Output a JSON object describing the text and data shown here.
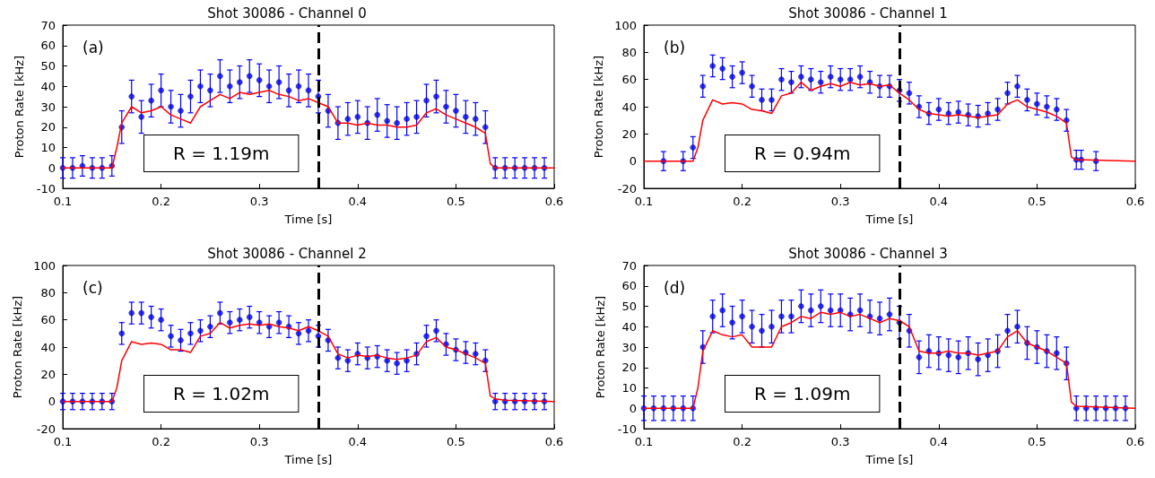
{
  "chart_data": [
    {
      "type": "scatter",
      "title": "Shot 30086 - Channel 0",
      "xlabel": "Time [s]",
      "ylabel": "Proton Rate [kHz]",
      "annotations": [
        "(a)",
        "R = 1.19m"
      ],
      "xlim": [
        0.1,
        0.6
      ],
      "xticks": [
        0.1,
        0.2,
        0.3,
        0.4,
        0.5,
        0.6
      ],
      "ylim": [
        -10,
        70
      ],
      "yticks": [
        -10,
        0,
        10,
        20,
        30,
        40,
        50,
        60,
        70
      ],
      "marker": "circle",
      "ref_lines": [
        {
          "axis": "x",
          "value": 0.36,
          "color": "#000000",
          "line_style": "dashed"
        }
      ],
      "series": [
        {
          "color": "#0000ff",
          "x": [
            0.1,
            0.11,
            0.12,
            0.13,
            0.14,
            0.15,
            0.16,
            0.17,
            0.18,
            0.19,
            0.2,
            0.21,
            0.22,
            0.23,
            0.24,
            0.25,
            0.26,
            0.27,
            0.28,
            0.29,
            0.3,
            0.31,
            0.32,
            0.33,
            0.34,
            0.35,
            0.36,
            0.37,
            0.38,
            0.39,
            0.4,
            0.41,
            0.42,
            0.43,
            0.44,
            0.45,
            0.46,
            0.47,
            0.48,
            0.49,
            0.5,
            0.51,
            0.52,
            0.53,
            0.54,
            0.55,
            0.56,
            0.57,
            0.58,
            0.59
          ],
          "values": [
            0,
            0,
            1,
            0,
            0,
            1,
            20,
            35,
            25,
            33,
            38,
            30,
            28,
            35,
            40,
            38,
            45,
            40,
            42,
            45,
            43,
            40,
            42,
            38,
            40,
            38,
            35,
            28,
            22,
            24,
            25,
            22,
            26,
            23,
            22,
            24,
            25,
            33,
            35,
            30,
            28,
            25,
            24,
            20,
            0,
            0,
            0,
            0,
            0,
            0
          ],
          "errors": [
            5,
            5,
            5,
            5,
            5,
            5,
            8,
            8,
            8,
            8,
            8,
            8,
            8,
            8,
            8,
            8,
            8,
            8,
            8,
            8,
            8,
            8,
            8,
            8,
            8,
            8,
            8,
            8,
            8,
            8,
            8,
            8,
            8,
            8,
            8,
            8,
            8,
            8,
            8,
            8,
            8,
            8,
            8,
            8,
            5,
            5,
            5,
            5,
            5,
            5
          ]
        },
        {
          "type": "line",
          "marker": "none",
          "color": "#ff0000",
          "x": [
            0.1,
            0.15,
            0.155,
            0.16,
            0.17,
            0.18,
            0.19,
            0.2,
            0.21,
            0.22,
            0.23,
            0.24,
            0.25,
            0.26,
            0.27,
            0.28,
            0.29,
            0.3,
            0.31,
            0.32,
            0.33,
            0.34,
            0.35,
            0.36,
            0.37,
            0.38,
            0.39,
            0.4,
            0.41,
            0.42,
            0.43,
            0.44,
            0.45,
            0.46,
            0.47,
            0.48,
            0.49,
            0.5,
            0.51,
            0.52,
            0.53,
            0.535,
            0.54,
            0.6
          ],
          "values": [
            0,
            0,
            10,
            22,
            30,
            27,
            28,
            30,
            26,
            24,
            22,
            30,
            33,
            36,
            34,
            37,
            36,
            37,
            38,
            36,
            35,
            33,
            34,
            32,
            30,
            22,
            22,
            21,
            22,
            21,
            21,
            20,
            20,
            21,
            27,
            29,
            26,
            24,
            22,
            20,
            17,
            2,
            0,
            0
          ]
        }
      ]
    },
    {
      "type": "scatter",
      "title": "Shot 30086 - Channel 1",
      "xlabel": "Time [s]",
      "ylabel": "Proton Rate [kHz]",
      "annotations": [
        "(b)",
        "R = 0.94m"
      ],
      "xlim": [
        0.1,
        0.6
      ],
      "xticks": [
        0.1,
        0.2,
        0.3,
        0.4,
        0.5,
        0.6
      ],
      "ylim": [
        -20,
        100
      ],
      "yticks": [
        -20,
        0,
        20,
        40,
        60,
        80,
        100
      ],
      "marker": "circle",
      "ref_lines": [
        {
          "axis": "x",
          "value": 0.36,
          "color": "#000000",
          "line_style": "dashed"
        }
      ],
      "series": [
        {
          "color": "#0000ff",
          "x": [
            0.12,
            0.14,
            0.15,
            0.16,
            0.17,
            0.18,
            0.19,
            0.2,
            0.21,
            0.22,
            0.23,
            0.24,
            0.25,
            0.26,
            0.27,
            0.28,
            0.29,
            0.3,
            0.31,
            0.32,
            0.33,
            0.34,
            0.35,
            0.36,
            0.37,
            0.38,
            0.39,
            0.4,
            0.41,
            0.42,
            0.43,
            0.44,
            0.45,
            0.46,
            0.47,
            0.48,
            0.49,
            0.5,
            0.51,
            0.52,
            0.53,
            0.54,
            0.545,
            0.56
          ],
          "values": [
            0,
            0,
            10,
            55,
            70,
            68,
            62,
            65,
            55,
            45,
            45,
            60,
            58,
            62,
            60,
            58,
            62,
            60,
            60,
            62,
            58,
            55,
            55,
            52,
            50,
            40,
            35,
            38,
            35,
            36,
            34,
            33,
            35,
            38,
            50,
            55,
            45,
            42,
            40,
            38,
            30,
            1,
            1,
            0
          ],
          "errors": [
            7,
            7,
            8,
            8,
            8,
            8,
            8,
            8,
            8,
            8,
            8,
            8,
            8,
            8,
            8,
            8,
            8,
            8,
            8,
            8,
            8,
            8,
            8,
            8,
            8,
            8,
            8,
            8,
            8,
            8,
            8,
            8,
            8,
            8,
            8,
            8,
            8,
            8,
            8,
            8,
            8,
            7,
            7,
            7
          ]
        },
        {
          "type": "line",
          "marker": "none",
          "color": "#ff0000",
          "x": [
            0.1,
            0.15,
            0.155,
            0.16,
            0.17,
            0.18,
            0.19,
            0.2,
            0.21,
            0.22,
            0.23,
            0.24,
            0.25,
            0.26,
            0.27,
            0.28,
            0.29,
            0.3,
            0.31,
            0.32,
            0.33,
            0.34,
            0.35,
            0.36,
            0.37,
            0.38,
            0.39,
            0.4,
            0.41,
            0.42,
            0.43,
            0.44,
            0.45,
            0.46,
            0.47,
            0.48,
            0.49,
            0.5,
            0.51,
            0.52,
            0.53,
            0.535,
            0.54,
            0.55,
            0.6
          ],
          "values": [
            0,
            0,
            10,
            30,
            45,
            42,
            43,
            42,
            38,
            37,
            35,
            48,
            50,
            58,
            52,
            55,
            57,
            55,
            58,
            56,
            57,
            55,
            56,
            50,
            45,
            38,
            35,
            34,
            33,
            34,
            33,
            32,
            33,
            34,
            42,
            45,
            40,
            38,
            36,
            33,
            28,
            3,
            1,
            1,
            0
          ]
        }
      ]
    },
    {
      "type": "scatter",
      "title": "Shot 30086 - Channel 2",
      "xlabel": "Time [s]",
      "ylabel": "Proton Rate [kHz]",
      "annotations": [
        "(c)",
        "R = 1.02m"
      ],
      "xlim": [
        0.1,
        0.6
      ],
      "xticks": [
        0.1,
        0.2,
        0.3,
        0.4,
        0.5,
        0.6
      ],
      "ylim": [
        -20,
        100
      ],
      "yticks": [
        -20,
        0,
        20,
        40,
        60,
        80,
        100
      ],
      "marker": "circle",
      "ref_lines": [
        {
          "axis": "x",
          "value": 0.36,
          "color": "#000000",
          "line_style": "dashed"
        }
      ],
      "series": [
        {
          "color": "#0000ff",
          "x": [
            0.1,
            0.11,
            0.12,
            0.13,
            0.14,
            0.15,
            0.16,
            0.17,
            0.18,
            0.19,
            0.2,
            0.21,
            0.22,
            0.23,
            0.24,
            0.25,
            0.26,
            0.27,
            0.28,
            0.29,
            0.3,
            0.31,
            0.32,
            0.33,
            0.34,
            0.35,
            0.36,
            0.37,
            0.38,
            0.39,
            0.4,
            0.41,
            0.42,
            0.43,
            0.44,
            0.45,
            0.46,
            0.47,
            0.48,
            0.49,
            0.5,
            0.51,
            0.52,
            0.53,
            0.54,
            0.55,
            0.56,
            0.57,
            0.58,
            0.59
          ],
          "values": [
            0,
            0,
            0,
            0,
            0,
            0,
            50,
            65,
            65,
            62,
            60,
            48,
            45,
            50,
            52,
            55,
            65,
            58,
            60,
            62,
            58,
            55,
            58,
            55,
            50,
            52,
            48,
            45,
            32,
            30,
            35,
            32,
            33,
            30,
            28,
            30,
            35,
            48,
            52,
            42,
            38,
            36,
            35,
            30,
            0,
            0,
            0,
            0,
            0,
            0
          ],
          "errors": [
            6,
            6,
            6,
            6,
            6,
            6,
            8,
            8,
            8,
            8,
            8,
            8,
            8,
            8,
            8,
            8,
            8,
            8,
            8,
            8,
            8,
            8,
            8,
            8,
            8,
            8,
            8,
            8,
            8,
            8,
            8,
            8,
            8,
            8,
            8,
            8,
            8,
            8,
            8,
            8,
            8,
            8,
            8,
            8,
            6,
            6,
            6,
            6,
            6,
            6
          ]
        },
        {
          "type": "line",
          "marker": "none",
          "color": "#ff0000",
          "x": [
            0.1,
            0.15,
            0.155,
            0.16,
            0.17,
            0.18,
            0.19,
            0.2,
            0.21,
            0.22,
            0.23,
            0.24,
            0.25,
            0.26,
            0.27,
            0.28,
            0.29,
            0.3,
            0.31,
            0.32,
            0.33,
            0.34,
            0.35,
            0.36,
            0.37,
            0.38,
            0.39,
            0.4,
            0.41,
            0.42,
            0.43,
            0.44,
            0.45,
            0.46,
            0.47,
            0.48,
            0.49,
            0.5,
            0.51,
            0.52,
            0.53,
            0.535,
            0.54,
            0.55,
            0.6
          ],
          "values": [
            0,
            0,
            10,
            30,
            44,
            42,
            43,
            42,
            38,
            38,
            36,
            48,
            50,
            58,
            54,
            56,
            57,
            56,
            57,
            55,
            54,
            52,
            55,
            52,
            48,
            35,
            32,
            34,
            33,
            34,
            32,
            31,
            32,
            34,
            44,
            47,
            40,
            38,
            35,
            32,
            28,
            4,
            2,
            1,
            0
          ]
        }
      ]
    },
    {
      "type": "scatter",
      "title": "Shot 30086 - Channel 3",
      "xlabel": "Time [s]",
      "ylabel": "Proton Rate [kHz]",
      "annotations": [
        "(d)",
        "R = 1.09m"
      ],
      "xlim": [
        0.1,
        0.6
      ],
      "xticks": [
        0.1,
        0.2,
        0.3,
        0.4,
        0.5,
        0.6
      ],
      "ylim": [
        -10,
        70
      ],
      "yticks": [
        -10,
        0,
        10,
        20,
        30,
        40,
        50,
        60,
        70
      ],
      "marker": "circle",
      "ref_lines": [
        {
          "axis": "x",
          "value": 0.36,
          "color": "#000000",
          "line_style": "dashed"
        }
      ],
      "series": [
        {
          "color": "#0000ff",
          "x": [
            0.1,
            0.11,
            0.12,
            0.13,
            0.14,
            0.15,
            0.16,
            0.17,
            0.18,
            0.19,
            0.2,
            0.21,
            0.22,
            0.23,
            0.24,
            0.25,
            0.26,
            0.27,
            0.28,
            0.29,
            0.3,
            0.31,
            0.32,
            0.33,
            0.34,
            0.35,
            0.36,
            0.37,
            0.38,
            0.39,
            0.4,
            0.41,
            0.42,
            0.43,
            0.44,
            0.45,
            0.46,
            0.47,
            0.48,
            0.49,
            0.5,
            0.51,
            0.52,
            0.53,
            0.54,
            0.55,
            0.56,
            0.57,
            0.58,
            0.59
          ],
          "values": [
            0,
            0,
            0,
            0,
            0,
            0,
            30,
            45,
            48,
            42,
            45,
            40,
            38,
            40,
            45,
            45,
            50,
            48,
            50,
            48,
            48,
            46,
            48,
            45,
            44,
            46,
            42,
            38,
            25,
            28,
            27,
            26,
            25,
            27,
            24,
            26,
            28,
            38,
            40,
            32,
            30,
            28,
            27,
            22,
            0,
            0,
            0,
            0,
            0,
            0
          ],
          "errors": [
            6,
            6,
            6,
            6,
            6,
            6,
            8,
            8,
            8,
            8,
            8,
            8,
            8,
            8,
            8,
            8,
            8,
            8,
            8,
            8,
            8,
            8,
            8,
            8,
            8,
            8,
            8,
            8,
            8,
            8,
            8,
            8,
            8,
            8,
            8,
            8,
            8,
            8,
            8,
            8,
            8,
            8,
            8,
            8,
            6,
            6,
            6,
            6,
            6,
            6
          ]
        },
        {
          "type": "line",
          "marker": "none",
          "color": "#ff0000",
          "x": [
            0.1,
            0.15,
            0.155,
            0.16,
            0.17,
            0.18,
            0.19,
            0.2,
            0.21,
            0.22,
            0.23,
            0.24,
            0.25,
            0.26,
            0.27,
            0.28,
            0.29,
            0.3,
            0.31,
            0.32,
            0.33,
            0.34,
            0.35,
            0.36,
            0.37,
            0.38,
            0.39,
            0.4,
            0.41,
            0.42,
            0.43,
            0.44,
            0.45,
            0.46,
            0.47,
            0.48,
            0.49,
            0.5,
            0.51,
            0.52,
            0.53,
            0.535,
            0.54,
            0.6
          ],
          "values": [
            0,
            0,
            10,
            28,
            38,
            36,
            35,
            36,
            30,
            30,
            30,
            40,
            42,
            45,
            44,
            47,
            46,
            47,
            45,
            46,
            44,
            42,
            44,
            43,
            40,
            28,
            27,
            27,
            28,
            27,
            27,
            26,
            27,
            28,
            35,
            38,
            32,
            30,
            28,
            25,
            22,
            3,
            1,
            0
          ]
        }
      ]
    }
  ]
}
